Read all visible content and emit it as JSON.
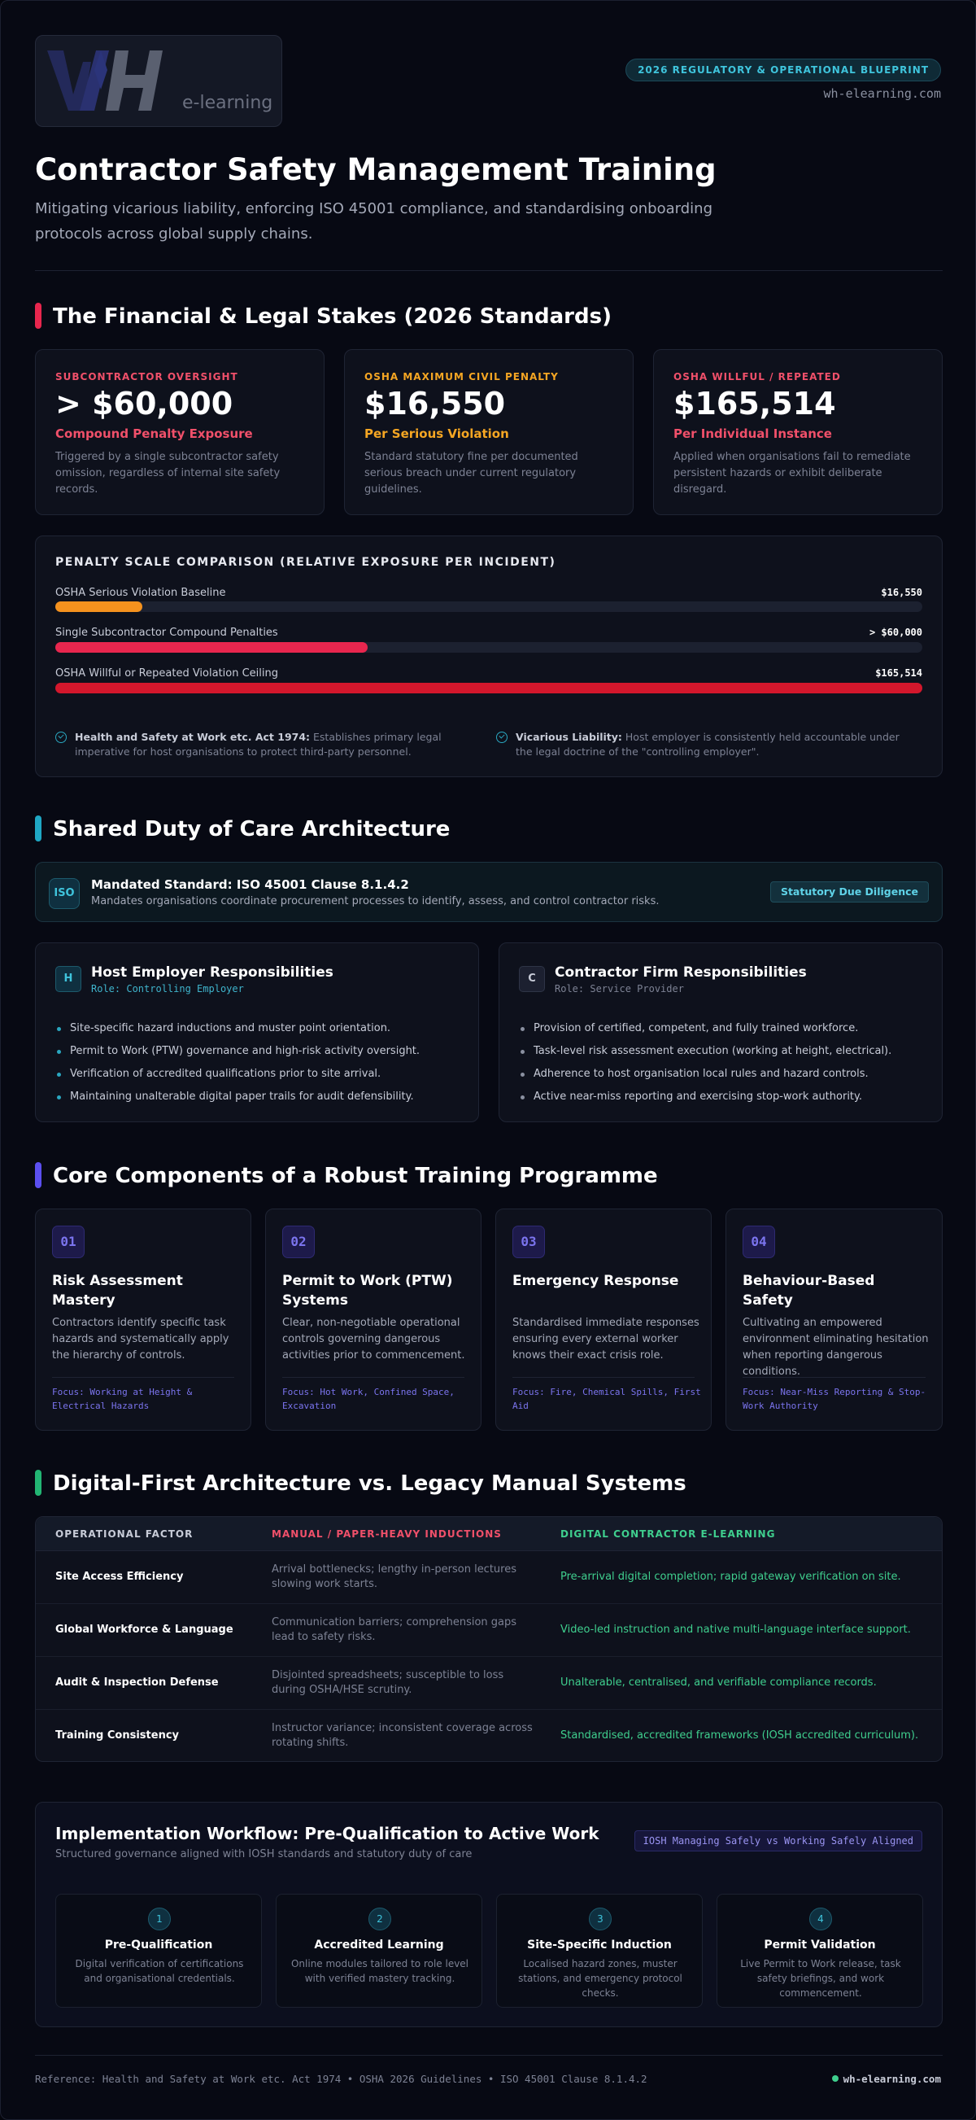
{
  "header": {
    "logo_text": "e-learning",
    "badge": "2026 REGULATORY & OPERATIONAL BLUEPRINT",
    "site": "wh-elearning.com",
    "title": "Contractor Safety Management Training",
    "subtitle": "Mitigating vicarious liability, enforcing ISO 45001 compliance, and standardising onboarding protocols across global supply chains."
  },
  "stakes": {
    "title": "The Financial & Legal Stakes (2026 Standards)",
    "cards": [
      {
        "label": "SUBCONTRACTOR OVERSIGHT",
        "value": "> $60,000",
        "sub": "Compound Penalty Exposure",
        "desc": "Triggered by a single subcontractor safety omission, regardless of internal site safety records.",
        "color": "#f0506a"
      },
      {
        "label": "OSHA MAXIMUM CIVIL PENALTY",
        "value": "$16,550",
        "sub": "Per Serious Violation",
        "desc": "Standard statutory fine per documented serious breach under current regulatory guidelines.",
        "color": "#f5a623"
      },
      {
        "label": "OSHA WILLFUL / REPEATED",
        "value": "$165,514",
        "sub": "Per Individual Instance",
        "desc": "Applied when organisations fail to remediate persistent hazards or exhibit deliberate disregard.",
        "color": "#f0506a"
      }
    ],
    "scale_title": "PENALTY SCALE COMPARISON (RELATIVE EXPOSURE PER INCIDENT)",
    "bars": [
      {
        "label": "OSHA Serious Violation Baseline",
        "value": "$16,550",
        "fraction": 0.1,
        "color": "#f5921e"
      },
      {
        "label": "Single Subcontractor Compound Penalties",
        "value": "> $60,000",
        "fraction": 0.36,
        "color": "#e8264e"
      },
      {
        "label": "OSHA Willful or Repeated Violation Ceiling",
        "value": "$165,514",
        "fraction": 1.0,
        "color": "#d3172c"
      }
    ],
    "notes": [
      {
        "bold": "Health and Safety at Work etc. Act 1974:",
        "text": " Establishes primary legal imperative for host organisations to protect third-party personnel."
      },
      {
        "bold": "Vicarious Liability:",
        "text": " Host employer is consistently held accountable under the legal doctrine of the \"controlling employer\"."
      }
    ]
  },
  "duty": {
    "title": "Shared Duty of Care Architecture",
    "iso_icon": "ISO",
    "iso_title": "Mandated Standard: ISO 45001 Clause 8.1.4.2",
    "iso_desc": "Mandates organisations coordinate procurement processes to identify, assess, and control contractor risks.",
    "iso_badge": "Statutory Due Diligence",
    "host": {
      "icon": "H",
      "title": "Host Employer Responsibilities",
      "role": "Role: Controlling Employer",
      "items": [
        "Site-specific hazard inductions and muster point orientation.",
        "Permit to Work (PTW) governance and high-risk activity oversight.",
        "Verification of accredited qualifications prior to site arrival.",
        "Maintaining unalterable digital paper trails for audit defensibility."
      ]
    },
    "contractor": {
      "icon": "C",
      "title": "Contractor Firm Responsibilities",
      "role": "Role: Service Provider",
      "items": [
        "Provision of certified, competent, and fully trained workforce.",
        "Task-level risk assessment execution (working at height, electrical).",
        "Adherence to host organisation local rules and hazard controls.",
        "Active near-miss reporting and exercising stop-work authority."
      ]
    }
  },
  "components": {
    "title": "Core Components of a Robust Training Programme",
    "items": [
      {
        "num": "01",
        "title": "Risk Assessment Mastery",
        "desc": "Contractors identify specific task hazards and systematically apply the hierarchy of controls.",
        "focus": "Focus: Working at Height & Electrical Hazards"
      },
      {
        "num": "02",
        "title": "Permit to Work (PTW) Systems",
        "desc": "Clear, non-negotiable operational controls governing dangerous activities prior to commencement.",
        "focus": "Focus: Hot Work, Confined Space, Excavation"
      },
      {
        "num": "03",
        "title": "Emergency Response",
        "desc": "Standardised immediate responses ensuring every external worker knows their exact crisis role.",
        "focus": "Focus: Fire, Chemical Spills, First Aid"
      },
      {
        "num": "04",
        "title": "Behaviour-Based Safety",
        "desc": "Cultivating an empowered environment eliminating hesitation when reporting dangerous conditions.",
        "focus": "Focus: Near-Miss Reporting & Stop-Work Authority"
      }
    ]
  },
  "comparison": {
    "title": "Digital-First Architecture vs. Legacy Manual Systems",
    "headers": [
      "OPERATIONAL FACTOR",
      "MANUAL / PAPER-HEAVY INDUCTIONS",
      "DIGITAL CONTRACTOR E-LEARNING"
    ],
    "rows": [
      {
        "factor": "Site Access Efficiency",
        "manual": "Arrival bottlenecks; lengthy in-person lectures slowing work starts.",
        "digital": "Pre-arrival digital completion; rapid gateway verification on site."
      },
      {
        "factor": "Global Workforce & Language",
        "manual": "Communication barriers; comprehension gaps lead to safety risks.",
        "digital": "Video-led instruction and native multi-language interface support."
      },
      {
        "factor": "Audit & Inspection Defense",
        "manual": "Disjointed spreadsheets; susceptible to loss during OSHA/HSE scrutiny.",
        "digital": "Unalterable, centralised, and verifiable compliance records."
      },
      {
        "factor": "Training Consistency",
        "manual": "Instructor variance; inconsistent coverage across rotating shifts.",
        "digital": "Standardised, accredited frameworks (IOSH accredited curriculum)."
      }
    ]
  },
  "workflow": {
    "title": "Implementation Workflow: Pre-Qualification to Active Work",
    "subtitle": "Structured governance aligned with IOSH standards and statutory duty of care",
    "badge": "IOSH Managing Safely vs Working Safely Aligned",
    "steps": [
      {
        "num": "1",
        "title": "Pre-Qualification",
        "desc": "Digital verification of certifications and organisational credentials."
      },
      {
        "num": "2",
        "title": "Accredited Learning",
        "desc": "Online modules tailored to role level with verified mastery tracking."
      },
      {
        "num": "3",
        "title": "Site-Specific Induction",
        "desc": "Localised hazard zones, muster stations, and emergency protocol checks."
      },
      {
        "num": "4",
        "title": "Permit Validation",
        "desc": "Live Permit to Work release, task safety briefings, and work commencement."
      }
    ]
  },
  "footer": {
    "reference": "Reference: Health and Safety at Work etc. Act 1974 • OSHA 2026 Guidelines • ISO 45001 Clause 8.1.4.2",
    "site": "wh-elearning.com"
  }
}
